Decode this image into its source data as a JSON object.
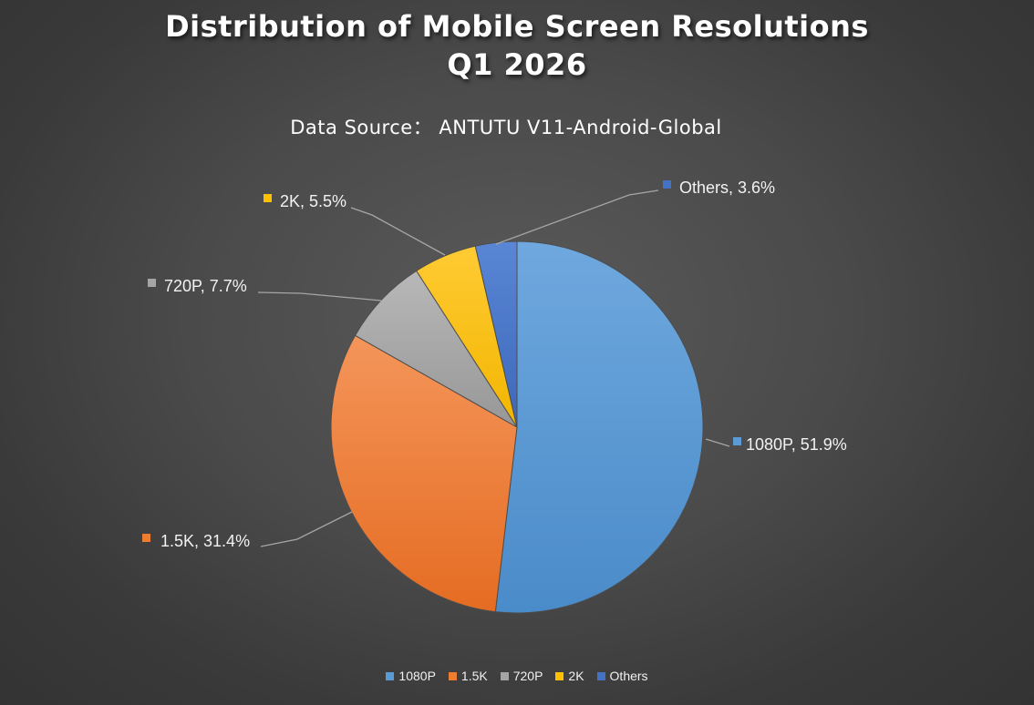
{
  "chart_data": {
    "type": "pie",
    "title_line1": "Distribution of Mobile Screen Resolutions",
    "title_line2": "Q1 2026",
    "subtitle": "Data Source： ANTUTU V11-Android-Global",
    "categories": [
      "1080P",
      "1.5K",
      "720P",
      "2K",
      "Others"
    ],
    "values": [
      51.9,
      31.4,
      7.7,
      5.5,
      3.6
    ],
    "labels": [
      "1080P, 51.9%",
      "1.5K, 31.4%",
      "720P, 7.7%",
      "2K, 5.5%",
      "Others, 3.6%"
    ],
    "colors": [
      "#5b9bd5",
      "#ed7d31",
      "#a5a5a5",
      "#ffc000",
      "#4472c4"
    ],
    "legend_position": "bottom"
  }
}
